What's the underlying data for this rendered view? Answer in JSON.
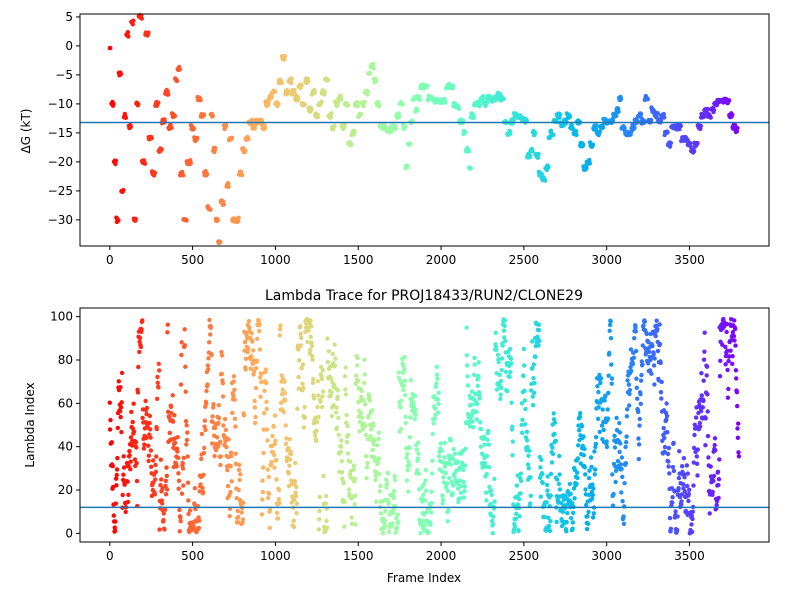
{
  "chart_data": [
    {
      "type": "scatter",
      "title": "",
      "xlabel": "",
      "ylabel": "ΔG (kT)",
      "xlim": [
        -180,
        3980
      ],
      "ylim": [
        -34.5,
        5.5
      ],
      "xticks": [
        0,
        500,
        1000,
        1500,
        2000,
        2500,
        3000,
        3500
      ],
      "yticks": [
        5,
        0,
        -5,
        -10,
        -15,
        -20,
        -25,
        -30
      ],
      "reference_line": -13.2,
      "reference_line_color": "#1f77b4",
      "colormap": "rainbow",
      "x_max": 3800,
      "segments": [
        [
          0,
          5,
          0
        ],
        [
          10,
          25,
          -10
        ],
        [
          25,
          40,
          -20
        ],
        [
          40,
          55,
          -30
        ],
        [
          55,
          70,
          -5
        ],
        [
          70,
          85,
          -25
        ],
        [
          85,
          100,
          -12
        ],
        [
          100,
          115,
          2
        ],
        [
          115,
          130,
          -14
        ],
        [
          130,
          145,
          4
        ],
        [
          145,
          160,
          -30
        ],
        [
          160,
          175,
          -10
        ],
        [
          175,
          195,
          5
        ],
        [
          195,
          215,
          -20
        ],
        [
          215,
          235,
          2
        ],
        [
          235,
          255,
          -16
        ],
        [
          255,
          275,
          -22
        ],
        [
          275,
          295,
          -10
        ],
        [
          295,
          315,
          -18
        ],
        [
          315,
          335,
          -13
        ],
        [
          335,
          355,
          -8
        ],
        [
          355,
          375,
          -14
        ],
        [
          375,
          395,
          -12
        ],
        [
          395,
          410,
          -6
        ],
        [
          410,
          425,
          -4
        ],
        [
          425,
          445,
          -22
        ],
        [
          445,
          465,
          -30
        ],
        [
          465,
          490,
          -20
        ],
        [
          490,
          510,
          -14
        ],
        [
          510,
          530,
          -16
        ],
        [
          530,
          550,
          -9
        ],
        [
          550,
          570,
          -12
        ],
        [
          570,
          590,
          -22
        ],
        [
          590,
          610,
          -28
        ],
        [
          610,
          625,
          -12
        ],
        [
          625,
          640,
          -18
        ],
        [
          640,
          655,
          -30
        ],
        [
          655,
          670,
          -34
        ],
        [
          670,
          690,
          -27
        ],
        [
          690,
          705,
          -14
        ],
        [
          705,
          720,
          -24
        ],
        [
          720,
          740,
          -16
        ],
        [
          740,
          760,
          -30
        ],
        [
          760,
          780,
          -30
        ],
        [
          780,
          800,
          -22
        ],
        [
          800,
          820,
          -18
        ],
        [
          820,
          840,
          -16
        ],
        [
          840,
          860,
          -13
        ],
        [
          860,
          880,
          -14
        ],
        [
          880,
          900,
          -13
        ],
        [
          900,
          920,
          -13
        ],
        [
          920,
          940,
          -14
        ],
        [
          940,
          960,
          -10
        ],
        [
          960,
          980,
          -9
        ],
        [
          980,
          1000,
          -8
        ],
        [
          1000,
          1020,
          -10
        ],
        [
          1020,
          1040,
          -6
        ],
        [
          1040,
          1060,
          -2
        ],
        [
          1060,
          1080,
          -8
        ],
        [
          1080,
          1100,
          -6
        ],
        [
          1100,
          1120,
          -8
        ],
        [
          1120,
          1140,
          -9
        ],
        [
          1140,
          1160,
          -7
        ],
        [
          1160,
          1180,
          -10
        ],
        [
          1180,
          1200,
          -6
        ],
        [
          1200,
          1220,
          -11
        ],
        [
          1220,
          1240,
          -8
        ],
        [
          1240,
          1260,
          -12
        ],
        [
          1260,
          1280,
          -10
        ],
        [
          1280,
          1300,
          -8
        ],
        [
          1300,
          1320,
          -6
        ],
        [
          1320,
          1340,
          -12
        ],
        [
          1340,
          1360,
          -14
        ],
        [
          1360,
          1380,
          -10
        ],
        [
          1380,
          1400,
          -9
        ],
        [
          1400,
          1420,
          -14
        ],
        [
          1420,
          1440,
          -10
        ],
        [
          1440,
          1460,
          -17
        ],
        [
          1460,
          1480,
          -15
        ],
        [
          1480,
          1500,
          -10
        ],
        [
          1500,
          1520,
          -12
        ],
        [
          1520,
          1540,
          -10
        ],
        [
          1540,
          1560,
          -8
        ],
        [
          1560,
          1575,
          -5
        ],
        [
          1575,
          1595,
          -3.5
        ],
        [
          1595,
          1610,
          -6
        ],
        [
          1610,
          1630,
          -10
        ],
        [
          1630,
          1660,
          -14
        ],
        [
          1660,
          1700,
          -14.5
        ],
        [
          1700,
          1730,
          -14
        ],
        [
          1730,
          1750,
          -12
        ],
        [
          1750,
          1770,
          -10
        ],
        [
          1770,
          1785,
          -14
        ],
        [
          1785,
          1800,
          -21
        ],
        [
          1800,
          1815,
          -17
        ],
        [
          1815,
          1830,
          -13
        ],
        [
          1830,
          1845,
          -9
        ],
        [
          1845,
          1860,
          -11
        ],
        [
          1860,
          1875,
          -9
        ],
        [
          1875,
          1895,
          -7
        ],
        [
          1895,
          1920,
          -7
        ],
        [
          1920,
          1950,
          -9
        ],
        [
          1950,
          2000,
          -9.5
        ],
        [
          2000,
          2030,
          -9.5
        ],
        [
          2030,
          2050,
          -7
        ],
        [
          2050,
          2075,
          -7
        ],
        [
          2075,
          2090,
          -10
        ],
        [
          2090,
          2110,
          -10.5
        ],
        [
          2110,
          2135,
          -13
        ],
        [
          2135,
          2150,
          -15
        ],
        [
          2150,
          2170,
          -18
        ],
        [
          2170,
          2180,
          -21
        ],
        [
          2180,
          2200,
          -12
        ],
        [
          2200,
          2220,
          -10
        ],
        [
          2220,
          2240,
          -10
        ],
        [
          2240,
          2260,
          -9
        ],
        [
          2260,
          2280,
          -10
        ],
        [
          2280,
          2300,
          -9
        ],
        [
          2300,
          2320,
          -9.5
        ],
        [
          2320,
          2340,
          -9
        ],
        [
          2340,
          2360,
          -8.5
        ],
        [
          2360,
          2380,
          -9
        ],
        [
          2380,
          2400,
          -13
        ],
        [
          2400,
          2420,
          -15
        ],
        [
          2420,
          2440,
          -13
        ],
        [
          2440,
          2460,
          -12
        ],
        [
          2460,
          2480,
          -12
        ],
        [
          2480,
          2500,
          -12.5
        ],
        [
          2500,
          2520,
          -13
        ],
        [
          2520,
          2540,
          -19
        ],
        [
          2540,
          2555,
          -18
        ],
        [
          2555,
          2570,
          -15
        ],
        [
          2570,
          2590,
          -19
        ],
        [
          2590,
          2610,
          -22
        ],
        [
          2610,
          2630,
          -23
        ],
        [
          2630,
          2650,
          -21
        ],
        [
          2650,
          2660,
          -16
        ],
        [
          2660,
          2680,
          -15
        ],
        [
          2680,
          2700,
          -13
        ],
        [
          2700,
          2720,
          -12
        ],
        [
          2720,
          2740,
          -13.5
        ],
        [
          2740,
          2760,
          -13
        ],
        [
          2760,
          2780,
          -12
        ],
        [
          2780,
          2800,
          -14
        ],
        [
          2800,
          2820,
          -15
        ],
        [
          2820,
          2840,
          -13
        ],
        [
          2840,
          2860,
          -17
        ],
        [
          2860,
          2880,
          -21
        ],
        [
          2880,
          2900,
          -20
        ],
        [
          2900,
          2920,
          -17
        ],
        [
          2920,
          2940,
          -14
        ],
        [
          2940,
          2960,
          -15
        ],
        [
          2960,
          2980,
          -14
        ],
        [
          2980,
          3000,
          -13
        ],
        [
          3000,
          3020,
          -13
        ],
        [
          3020,
          3040,
          -13
        ],
        [
          3040,
          3060,
          -12
        ],
        [
          3060,
          3075,
          -11
        ],
        [
          3075,
          3090,
          -9
        ],
        [
          3090,
          3110,
          -14
        ],
        [
          3110,
          3130,
          -15
        ],
        [
          3130,
          3150,
          -15
        ],
        [
          3150,
          3170,
          -14
        ],
        [
          3170,
          3190,
          -13
        ],
        [
          3190,
          3210,
          -12
        ],
        [
          3210,
          3230,
          -13
        ],
        [
          3230,
          3250,
          -9
        ],
        [
          3250,
          3270,
          -13
        ],
        [
          3270,
          3290,
          -11
        ],
        [
          3290,
          3310,
          -12
        ],
        [
          3310,
          3330,
          -13
        ],
        [
          3330,
          3350,
          -12
        ],
        [
          3350,
          3370,
          -15
        ],
        [
          3370,
          3390,
          -17
        ],
        [
          3390,
          3410,
          -14
        ],
        [
          3410,
          3430,
          -14
        ],
        [
          3430,
          3450,
          -14
        ],
        [
          3450,
          3470,
          -16
        ],
        [
          3470,
          3490,
          -16
        ],
        [
          3490,
          3510,
          -17
        ],
        [
          3510,
          3530,
          -18
        ],
        [
          3530,
          3550,
          -17
        ],
        [
          3550,
          3570,
          -14
        ],
        [
          3570,
          3590,
          -12
        ],
        [
          3590,
          3610,
          -11
        ],
        [
          3610,
          3630,
          -12
        ],
        [
          3630,
          3650,
          -11
        ],
        [
          3650,
          3670,
          -10
        ],
        [
          3670,
          3700,
          -9.5
        ],
        [
          3700,
          3740,
          -9.5
        ],
        [
          3740,
          3760,
          -12
        ],
        [
          3760,
          3780,
          -14
        ],
        [
          3780,
          3790,
          -14.5
        ]
      ]
    },
    {
      "type": "scatter",
      "title": "Lambda Trace for PROJ18433/RUN2/CLONE29",
      "xlabel": "Frame Index",
      "ylabel": "Lambda Index",
      "xlim": [
        -180,
        3980
      ],
      "ylim": [
        -4,
        104
      ],
      "xticks": [
        0,
        500,
        1000,
        1500,
        2000,
        2500,
        3000,
        3500
      ],
      "yticks": [
        0,
        20,
        40,
        60,
        80,
        100
      ],
      "reference_line": 12,
      "reference_line_color": "#1f77b4",
      "colormap": "rainbow",
      "x_max": 3800,
      "n_points": 3800,
      "y_min": 0,
      "y_max": 99
    }
  ]
}
